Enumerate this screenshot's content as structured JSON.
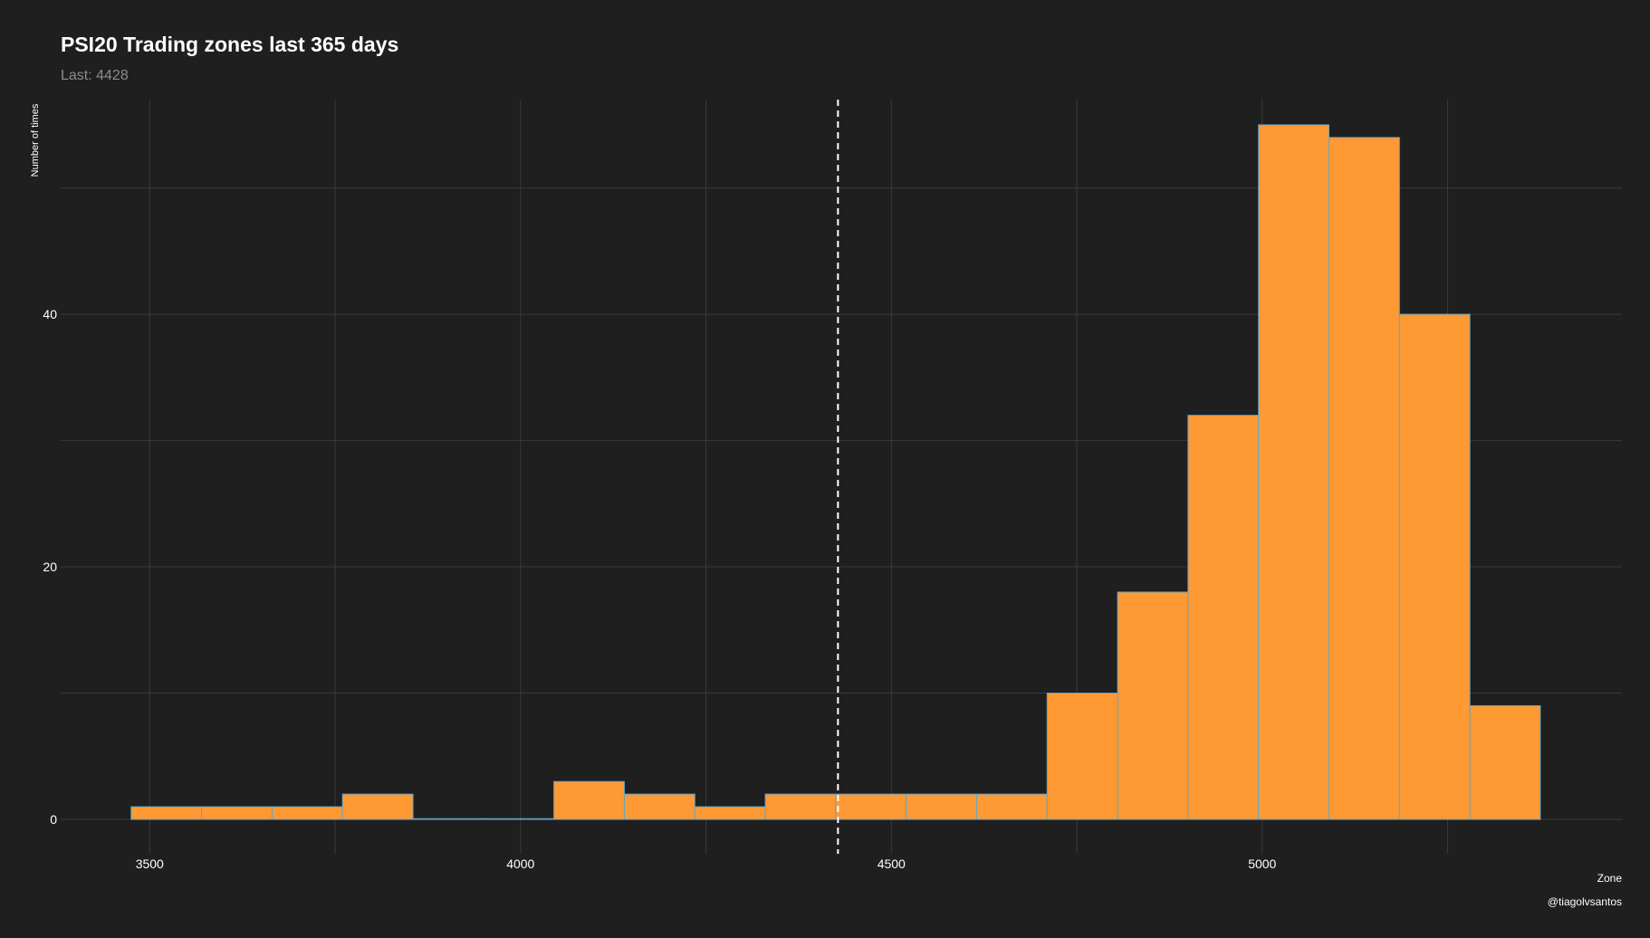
{
  "title": "PSI20 Trading zones last 365 days",
  "subtitle": "Last: 4428",
  "caption": "@tiagolvsantos",
  "colors": {
    "background": "#1f1f1f",
    "bar_fill": "#ff9933",
    "bar_outline": "#5fa8c8",
    "grid": "#3a3a3a",
    "text": "#ffffff",
    "subtitle": "#8c8c8c",
    "vline": "#ffffff"
  },
  "chart_data": {
    "type": "bar",
    "title": "PSI20 Trading zones last 365 days",
    "subtitle": "Last: 4428",
    "xlabel": "Zone",
    "ylabel": "Number of times",
    "xlim": [
      3380,
      5485
    ],
    "ylim": [
      0,
      57
    ],
    "x_ticks": [
      3500,
      4000,
      4500,
      5000
    ],
    "y_ticks": [
      0,
      20,
      40
    ],
    "grid": true,
    "reference_line": {
      "x": 4428,
      "style": "dashed"
    },
    "bins": [
      {
        "x0": 3475,
        "x1": 3570,
        "count": 1
      },
      {
        "x0": 3570,
        "x1": 3665,
        "count": 1
      },
      {
        "x0": 3665,
        "x1": 3760,
        "count": 1
      },
      {
        "x0": 3760,
        "x1": 3855,
        "count": 2
      },
      {
        "x0": 3855,
        "x1": 3950,
        "count": 0
      },
      {
        "x0": 3950,
        "x1": 4045,
        "count": 0
      },
      {
        "x0": 4045,
        "x1": 4140,
        "count": 3
      },
      {
        "x0": 4140,
        "x1": 4235,
        "count": 2
      },
      {
        "x0": 4235,
        "x1": 4330,
        "count": 1
      },
      {
        "x0": 4330,
        "x1": 4425,
        "count": 2
      },
      {
        "x0": 4425,
        "x1": 4520,
        "count": 2
      },
      {
        "x0": 4520,
        "x1": 4615,
        "count": 2
      },
      {
        "x0": 4615,
        "x1": 4710,
        "count": 2
      },
      {
        "x0": 4710,
        "x1": 4805,
        "count": 10
      },
      {
        "x0": 4805,
        "x1": 4900,
        "count": 18
      },
      {
        "x0": 4900,
        "x1": 4995,
        "count": 32
      },
      {
        "x0": 4995,
        "x1": 5090,
        "count": 55
      },
      {
        "x0": 5090,
        "x1": 5185,
        "count": 54
      },
      {
        "x0": 5185,
        "x1": 5280,
        "count": 40
      },
      {
        "x0": 5280,
        "x1": 5375,
        "count": 9
      }
    ]
  }
}
